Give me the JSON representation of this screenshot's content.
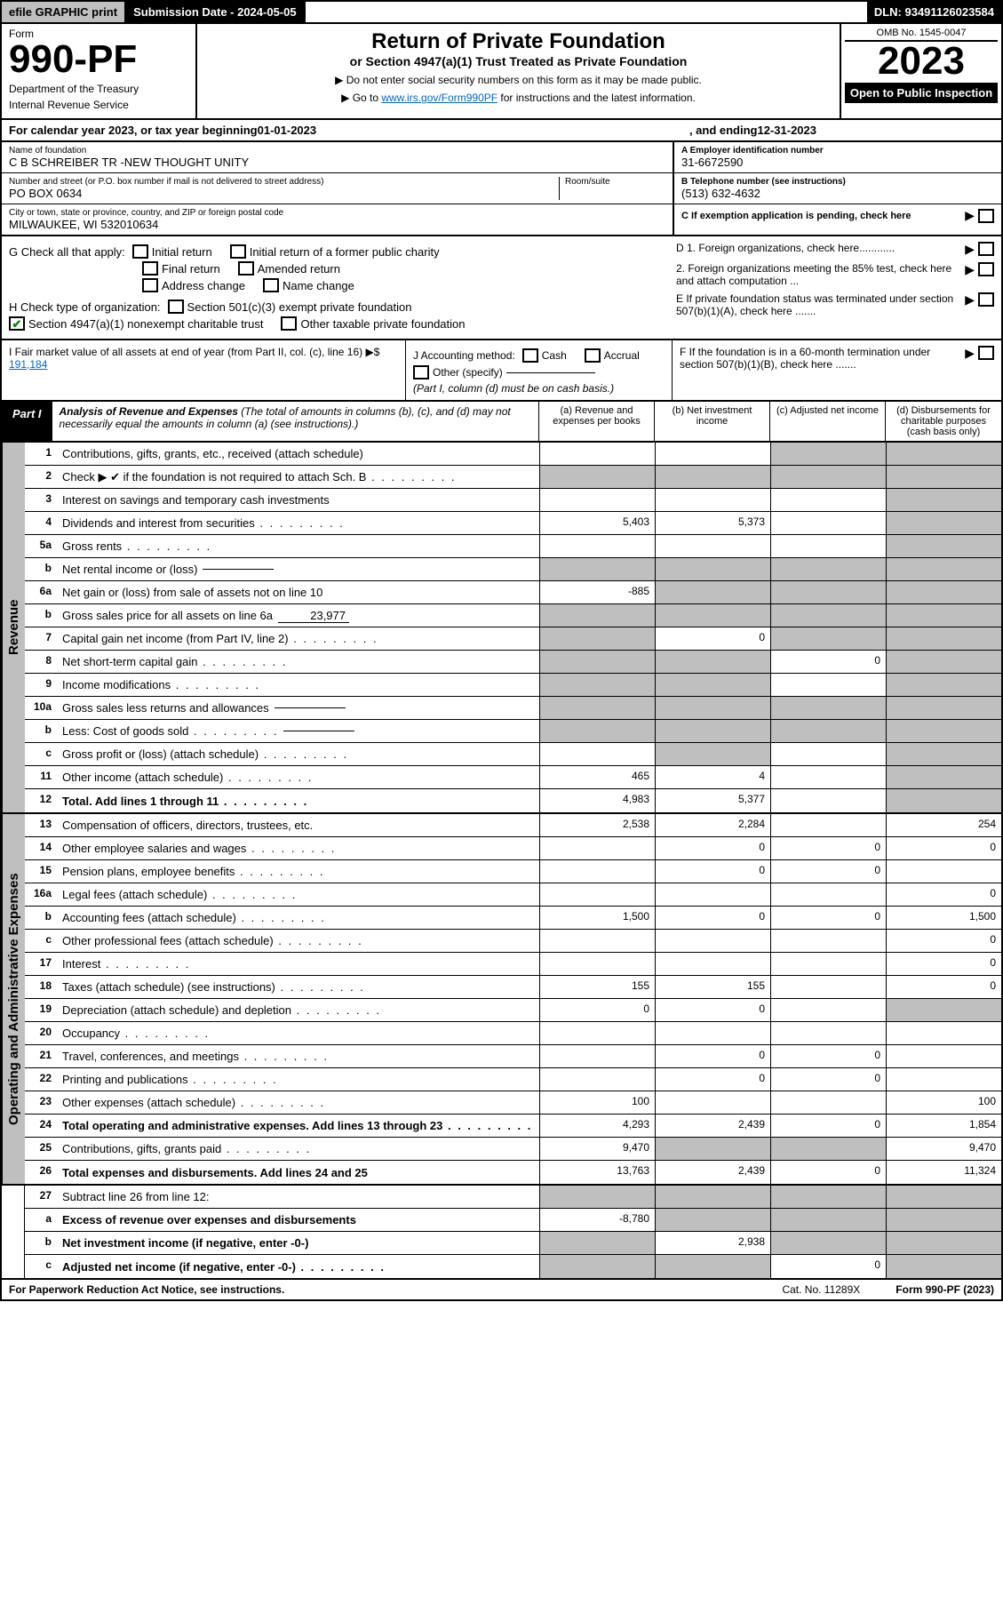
{
  "topbar": {
    "efile": "efile GRAPHIC print",
    "submission_label": "Submission Date - 2024-05-05",
    "dln": "DLN: 93491126023584"
  },
  "header": {
    "form_label": "Form",
    "form_number": "990-PF",
    "dept1": "Department of the Treasury",
    "dept2": "Internal Revenue Service",
    "title": "Return of Private Foundation",
    "subtitle": "or Section 4947(a)(1) Trust Treated as Private Foundation",
    "note1": "▶ Do not enter social security numbers on this form as it may be made public.",
    "note2_pre": "▶ Go to ",
    "note2_link": "www.irs.gov/Form990PF",
    "note2_post": " for instructions and the latest information.",
    "omb": "OMB No. 1545-0047",
    "tax_year": "2023",
    "open": "Open to Public Inspection"
  },
  "cal_year": {
    "pre": "For calendar year 2023, or tax year beginning ",
    "begin": "01-01-2023",
    "mid": " , and ending ",
    "end": "12-31-2023"
  },
  "foundation": {
    "name_lbl": "Name of foundation",
    "name": "C B SCHREIBER TR -NEW THOUGHT UNITY",
    "addr_lbl": "Number and street (or P.O. box number if mail is not delivered to street address)",
    "addr": "PO BOX 0634",
    "room_lbl": "Room/suite",
    "city_lbl": "City or town, state or province, country, and ZIP or foreign postal code",
    "city": "MILWAUKEE, WI  532010634",
    "ein_lbl": "A Employer identification number",
    "ein": "31-6672590",
    "phone_lbl": "B Telephone number (see instructions)",
    "phone": "(513) 632-4632",
    "c_lbl": "C If exemption application is pending, check here"
  },
  "checks": {
    "g_label": "G Check all that apply:",
    "g_items": [
      "Initial return",
      "Initial return of a former public charity",
      "Final return",
      "Amended return",
      "Address change",
      "Name change"
    ],
    "h_label": "H Check type of organization:",
    "h_items": [
      "Section 501(c)(3) exempt private foundation",
      "Section 4947(a)(1) nonexempt charitable trust",
      "Other taxable private foundation"
    ],
    "d1": "D 1. Foreign organizations, check here............",
    "d2": "2. Foreign organizations meeting the 85% test, check here and attach computation ...",
    "e": "E  If private foundation status was terminated under section 507(b)(1)(A), check here .......",
    "f": "F  If the foundation is in a 60-month termination under section 507(b)(1)(B), check here .......",
    "i_label": "I Fair market value of all assets at end of year (from Part II, col. (c), line 16) ▶$ ",
    "i_val": "191,184",
    "j_label": "J Accounting method:",
    "j_items": [
      "Cash",
      "Accrual",
      "Other (specify)"
    ],
    "j_note": "(Part I, column (d) must be on cash basis.)"
  },
  "part1": {
    "label": "Part I",
    "title": "Analysis of Revenue and Expenses",
    "title_note": " (The total of amounts in columns (b), (c), and (d) may not necessarily equal the amounts in column (a) (see instructions).)",
    "col_a": "(a) Revenue and expenses per books",
    "col_b": "(b) Net investment income",
    "col_c": "(c) Adjusted net income",
    "col_d": "(d) Disbursements for charitable purposes (cash basis only)"
  },
  "side_labels": {
    "revenue": "Revenue",
    "expenses": "Operating and Administrative Expenses"
  },
  "rows": [
    {
      "n": "1",
      "d": "Contributions, gifts, grants, etc., received (attach schedule)",
      "a": "",
      "b": "",
      "c": "g",
      "dd": "g"
    },
    {
      "n": "2",
      "d": "Check ▶ ✔ if the foundation is not required to attach Sch. B",
      "dots": true,
      "nocols": true
    },
    {
      "n": "3",
      "d": "Interest on savings and temporary cash investments",
      "a": "",
      "b": "",
      "c": "",
      "dd": "g"
    },
    {
      "n": "4",
      "d": "Dividends and interest from securities",
      "dots": true,
      "a": "5,403",
      "b": "5,373",
      "c": "",
      "dd": "g"
    },
    {
      "n": "5a",
      "d": "Gross rents",
      "dots": true,
      "a": "",
      "b": "",
      "c": "",
      "dd": "g"
    },
    {
      "n": "b",
      "d": "Net rental income or (loss)",
      "inline": "",
      "nocols": true
    },
    {
      "n": "6a",
      "d": "Net gain or (loss) from sale of assets not on line 10",
      "a": "-885",
      "b": "g",
      "c": "g",
      "dd": "g"
    },
    {
      "n": "b",
      "d": "Gross sales price for all assets on line 6a",
      "inline": "23,977",
      "nocols": true
    },
    {
      "n": "7",
      "d": "Capital gain net income (from Part IV, line 2)",
      "dots": true,
      "a": "g",
      "b": "0",
      "c": "g",
      "dd": "g"
    },
    {
      "n": "8",
      "d": "Net short-term capital gain",
      "dots": true,
      "a": "g",
      "b": "g",
      "c": "0",
      "dd": "g"
    },
    {
      "n": "9",
      "d": "Income modifications",
      "dots": true,
      "a": "g",
      "b": "g",
      "c": "",
      "dd": "g"
    },
    {
      "n": "10a",
      "d": "Gross sales less returns and allowances",
      "inline": "",
      "nocols": true
    },
    {
      "n": "b",
      "d": "Less: Cost of goods sold",
      "dots": true,
      "inline": "",
      "nocols": true
    },
    {
      "n": "c",
      "d": "Gross profit or (loss) (attach schedule)",
      "dots": true,
      "a": "",
      "b": "g",
      "c": "",
      "dd": "g"
    },
    {
      "n": "11",
      "d": "Other income (attach schedule)",
      "dots": true,
      "a": "465",
      "b": "4",
      "c": "",
      "dd": "g"
    },
    {
      "n": "12",
      "d": "Total. Add lines 1 through 11",
      "bold": true,
      "dots": true,
      "a": "4,983",
      "b": "5,377",
      "c": "",
      "dd": "g"
    }
  ],
  "exp_rows": [
    {
      "n": "13",
      "d": "Compensation of officers, directors, trustees, etc.",
      "a": "2,538",
      "b": "2,284",
      "c": "",
      "dd": "254"
    },
    {
      "n": "14",
      "d": "Other employee salaries and wages",
      "dots": true,
      "a": "",
      "b": "0",
      "c": "0",
      "dd": "0"
    },
    {
      "n": "15",
      "d": "Pension plans, employee benefits",
      "dots": true,
      "a": "",
      "b": "0",
      "c": "0",
      "dd": ""
    },
    {
      "n": "16a",
      "d": "Legal fees (attach schedule)",
      "dots": true,
      "a": "",
      "b": "",
      "c": "",
      "dd": "0"
    },
    {
      "n": "b",
      "d": "Accounting fees (attach schedule)",
      "dots": true,
      "a": "1,500",
      "b": "0",
      "c": "0",
      "dd": "1,500"
    },
    {
      "n": "c",
      "d": "Other professional fees (attach schedule)",
      "dots": true,
      "a": "",
      "b": "",
      "c": "",
      "dd": "0"
    },
    {
      "n": "17",
      "d": "Interest",
      "dots": true,
      "a": "",
      "b": "",
      "c": "",
      "dd": "0"
    },
    {
      "n": "18",
      "d": "Taxes (attach schedule) (see instructions)",
      "dots": true,
      "a": "155",
      "b": "155",
      "c": "",
      "dd": "0"
    },
    {
      "n": "19",
      "d": "Depreciation (attach schedule) and depletion",
      "dots": true,
      "a": "0",
      "b": "0",
      "c": "",
      "dd": "g"
    },
    {
      "n": "20",
      "d": "Occupancy",
      "dots": true,
      "a": "",
      "b": "",
      "c": "",
      "dd": ""
    },
    {
      "n": "21",
      "d": "Travel, conferences, and meetings",
      "dots": true,
      "a": "",
      "b": "0",
      "c": "0",
      "dd": ""
    },
    {
      "n": "22",
      "d": "Printing and publications",
      "dots": true,
      "a": "",
      "b": "0",
      "c": "0",
      "dd": ""
    },
    {
      "n": "23",
      "d": "Other expenses (attach schedule)",
      "dots": true,
      "a": "100",
      "b": "",
      "c": "",
      "dd": "100"
    },
    {
      "n": "24",
      "d": "Total operating and administrative expenses. Add lines 13 through 23",
      "bold": true,
      "dots": true,
      "a": "4,293",
      "b": "2,439",
      "c": "0",
      "dd": "1,854"
    },
    {
      "n": "25",
      "d": "Contributions, gifts, grants paid",
      "dots": true,
      "a": "9,470",
      "b": "g",
      "c": "g",
      "dd": "9,470"
    },
    {
      "n": "26",
      "d": "Total expenses and disbursements. Add lines 24 and 25",
      "bold": true,
      "a": "13,763",
      "b": "2,439",
      "c": "0",
      "dd": "11,324"
    }
  ],
  "bottom_rows": [
    {
      "n": "27",
      "d": "Subtract line 26 from line 12:",
      "a": "g",
      "b": "g",
      "c": "g",
      "dd": "g"
    },
    {
      "n": "a",
      "d": "Excess of revenue over expenses and disbursements",
      "bold": true,
      "a": "-8,780",
      "b": "g",
      "c": "g",
      "dd": "g"
    },
    {
      "n": "b",
      "d": "Net investment income (if negative, enter -0-)",
      "bold": true,
      "a": "g",
      "b": "2,938",
      "c": "g",
      "dd": "g"
    },
    {
      "n": "c",
      "d": "Adjusted net income (if negative, enter -0-)",
      "bold": true,
      "dots": true,
      "a": "g",
      "b": "g",
      "c": "0",
      "dd": "g"
    }
  ],
  "footer": {
    "left": "For Paperwork Reduction Act Notice, see instructions.",
    "mid": "Cat. No. 11289X",
    "right": "Form 990-PF (2023)"
  },
  "colors": {
    "grey": "#bfbfbf",
    "black": "#000000",
    "link": "#0066cc",
    "check": "#008800"
  }
}
